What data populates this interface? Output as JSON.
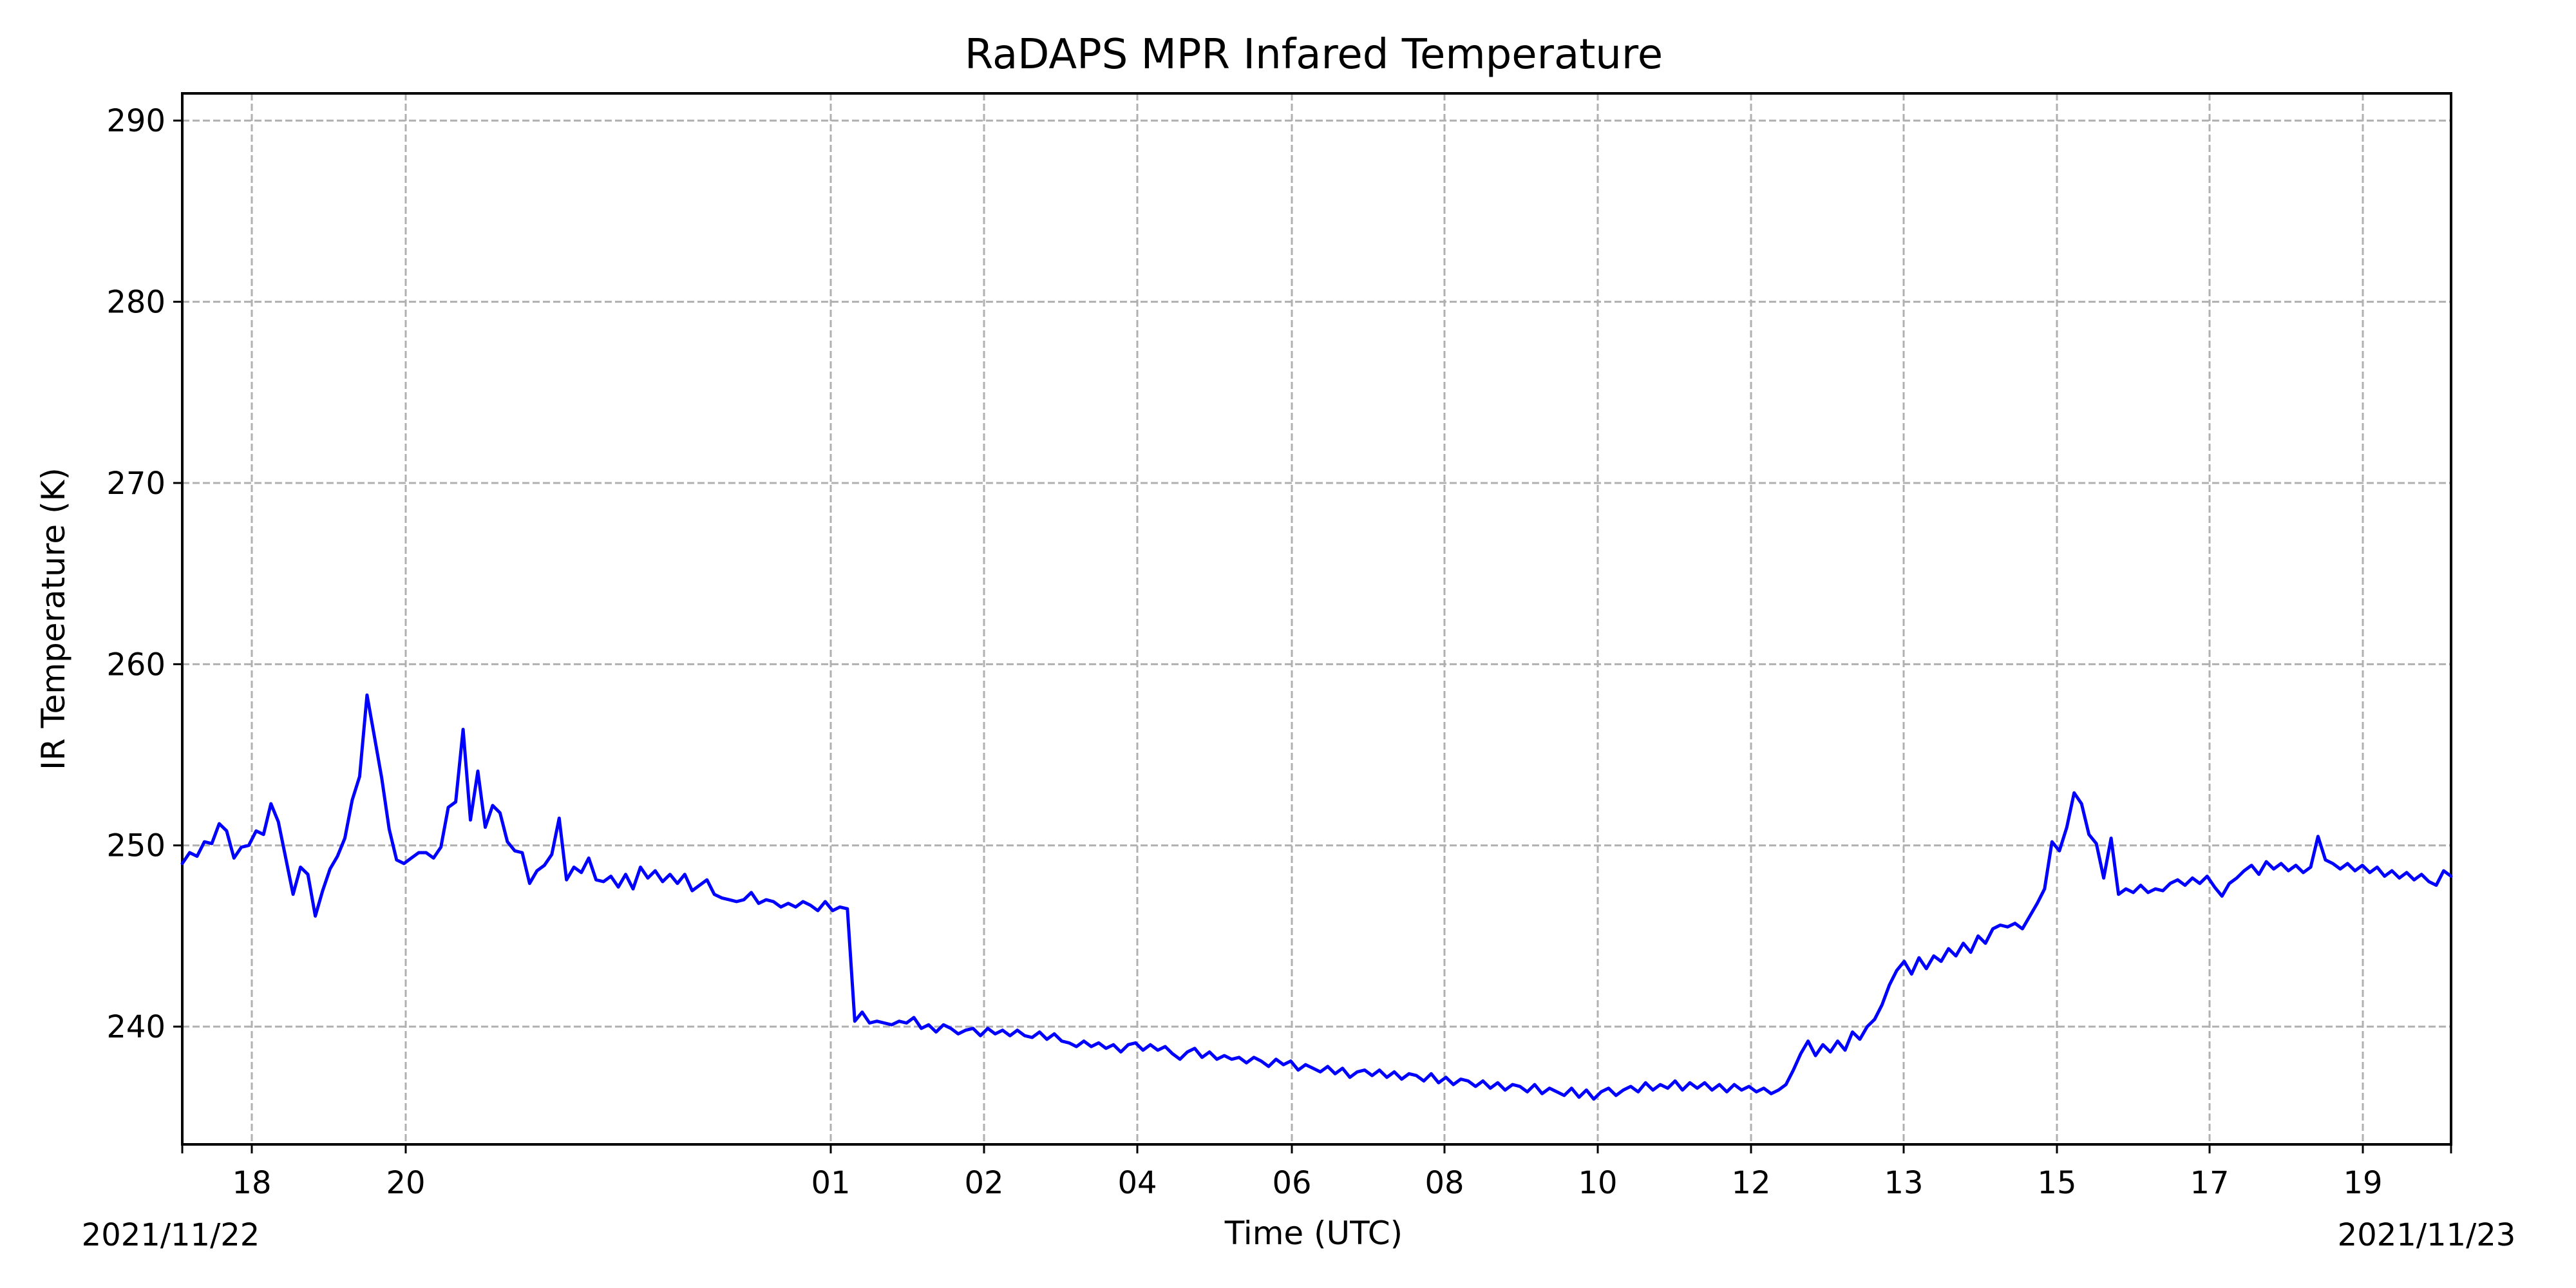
{
  "chart_data": {
    "type": "line",
    "title": "RaDAPS MPR Infared Temperature",
    "xlabel": "Time (UTC)",
    "ylabel": "IR Temperature (K)",
    "x_unit": "hour of day (UTC)",
    "ylim": [
      233.5,
      291.5
    ],
    "y_ticks": [
      240,
      250,
      260,
      270,
      280,
      290
    ],
    "x_tick_labels": [
      "18",
      "20",
      "01",
      "02",
      "04",
      "06",
      "08",
      "10",
      "12",
      "13",
      "15",
      "17",
      "19"
    ],
    "x_corner_labels": {
      "left": "2021/11/22",
      "right": "2021/11/23"
    },
    "grid": true,
    "series": [
      {
        "color": "#0000ff",
        "line_style": "solid",
        "points": [
          [
            0,
            249
          ],
          [
            1,
            249.6
          ],
          [
            2,
            249.4
          ],
          [
            3,
            250.2
          ],
          [
            4,
            250.1
          ],
          [
            5,
            251.2
          ],
          [
            6,
            250.8
          ],
          [
            7,
            249.3
          ],
          [
            8,
            249.9
          ],
          [
            9,
            250.0
          ],
          [
            10,
            250.8
          ],
          [
            11,
            250.6
          ],
          [
            12,
            252.3
          ],
          [
            13,
            251.3
          ],
          [
            14,
            249.3
          ],
          [
            15,
            247.3
          ],
          [
            16,
            248.8
          ],
          [
            17,
            248.4
          ],
          [
            18,
            246.1
          ],
          [
            19,
            247.5
          ],
          [
            20,
            248.7
          ],
          [
            21,
            249.4
          ],
          [
            22,
            250.4
          ],
          [
            23,
            252.5
          ],
          [
            24,
            253.8
          ],
          [
            25,
            258.3
          ],
          [
            26,
            256.0
          ],
          [
            27,
            253.7
          ],
          [
            28,
            250.9
          ],
          [
            29,
            249.2
          ],
          [
            30,
            249.0
          ],
          [
            31,
            249.3
          ],
          [
            32,
            249.6
          ],
          [
            33,
            249.6
          ],
          [
            34,
            249.3
          ],
          [
            35,
            249.9
          ],
          [
            36,
            252.1
          ],
          [
            37,
            252.4
          ],
          [
            38,
            256.4
          ],
          [
            39,
            251.4
          ],
          [
            40,
            254.1
          ],
          [
            41,
            251.0
          ],
          [
            42,
            252.2
          ],
          [
            43,
            251.8
          ],
          [
            44,
            250.2
          ],
          [
            45,
            249.7
          ],
          [
            46,
            249.6
          ],
          [
            47,
            247.9
          ],
          [
            48,
            248.6
          ],
          [
            49,
            248.9
          ],
          [
            50,
            249.5
          ],
          [
            51,
            251.5
          ],
          [
            52,
            248.1
          ],
          [
            53,
            248.8
          ],
          [
            54,
            248.5
          ],
          [
            55,
            249.3
          ],
          [
            56,
            248.1
          ],
          [
            57,
            248.0
          ],
          [
            58,
            248.3
          ],
          [
            59,
            247.7
          ],
          [
            60,
            248.4
          ],
          [
            61,
            247.6
          ],
          [
            62,
            248.8
          ],
          [
            63,
            248.2
          ],
          [
            64,
            248.6
          ],
          [
            65,
            248.0
          ],
          [
            66,
            248.4
          ],
          [
            67,
            247.9
          ],
          [
            68,
            248.4
          ],
          [
            69,
            247.5
          ],
          [
            70,
            247.8
          ],
          [
            71,
            248.1
          ],
          [
            72,
            247.3
          ],
          [
            73,
            247.1
          ],
          [
            74,
            247.0
          ],
          [
            75,
            246.9
          ],
          [
            76,
            247.0
          ],
          [
            77,
            247.4
          ],
          [
            78,
            246.8
          ],
          [
            79,
            247.0
          ],
          [
            80,
            246.9
          ],
          [
            81,
            246.6
          ],
          [
            82,
            246.8
          ],
          [
            83,
            246.6
          ],
          [
            84,
            246.9
          ],
          [
            85,
            246.7
          ],
          [
            86,
            246.4
          ],
          [
            87,
            246.9
          ],
          [
            88,
            246.4
          ],
          [
            89,
            246.6
          ],
          [
            90,
            246.5
          ],
          [
            91,
            240.3
          ],
          [
            92,
            240.8
          ],
          [
            93,
            240.2
          ],
          [
            94,
            240.3
          ],
          [
            95,
            240.2
          ],
          [
            96,
            240.1
          ],
          [
            97,
            240.3
          ],
          [
            98,
            240.2
          ],
          [
            99,
            240.5
          ],
          [
            100,
            239.9
          ],
          [
            101,
            240.1
          ],
          [
            102,
            239.7
          ],
          [
            103,
            240.1
          ],
          [
            104,
            239.9
          ],
          [
            105,
            239.6
          ],
          [
            106,
            239.8
          ],
          [
            107,
            239.9
          ],
          [
            108,
            239.5
          ],
          [
            109,
            239.9
          ],
          [
            110,
            239.6
          ],
          [
            111,
            239.8
          ],
          [
            112,
            239.5
          ],
          [
            113,
            239.8
          ],
          [
            114,
            239.5
          ],
          [
            115,
            239.4
          ],
          [
            116,
            239.7
          ],
          [
            117,
            239.3
          ],
          [
            118,
            239.6
          ],
          [
            119,
            239.2
          ],
          [
            120,
            239.1
          ],
          [
            121,
            238.9
          ],
          [
            122,
            239.2
          ],
          [
            123,
            238.9
          ],
          [
            124,
            239.1
          ],
          [
            125,
            238.8
          ],
          [
            126,
            239.0
          ],
          [
            127,
            238.6
          ],
          [
            128,
            239.0
          ],
          [
            129,
            239.1
          ],
          [
            130,
            238.7
          ],
          [
            131,
            239.0
          ],
          [
            132,
            238.7
          ],
          [
            133,
            238.9
          ],
          [
            134,
            238.5
          ],
          [
            135,
            238.2
          ],
          [
            136,
            238.6
          ],
          [
            137,
            238.8
          ],
          [
            138,
            238.3
          ],
          [
            139,
            238.6
          ],
          [
            140,
            238.2
          ],
          [
            141,
            238.4
          ],
          [
            142,
            238.2
          ],
          [
            143,
            238.3
          ],
          [
            144,
            238.0
          ],
          [
            145,
            238.3
          ],
          [
            146,
            238.1
          ],
          [
            147,
            237.8
          ],
          [
            148,
            238.2
          ],
          [
            149,
            237.9
          ],
          [
            150,
            238.1
          ],
          [
            151,
            237.6
          ],
          [
            152,
            237.9
          ],
          [
            153,
            237.7
          ],
          [
            154,
            237.5
          ],
          [
            155,
            237.8
          ],
          [
            156,
            237.4
          ],
          [
            157,
            237.7
          ],
          [
            158,
            237.2
          ],
          [
            159,
            237.5
          ],
          [
            160,
            237.6
          ],
          [
            161,
            237.3
          ],
          [
            162,
            237.6
          ],
          [
            163,
            237.2
          ],
          [
            164,
            237.5
          ],
          [
            165,
            237.1
          ],
          [
            166,
            237.4
          ],
          [
            167,
            237.3
          ],
          [
            168,
            237.0
          ],
          [
            169,
            237.4
          ],
          [
            170,
            236.9
          ],
          [
            171,
            237.2
          ],
          [
            172,
            236.8
          ],
          [
            173,
            237.1
          ],
          [
            174,
            237.0
          ],
          [
            175,
            236.7
          ],
          [
            176,
            237.0
          ],
          [
            177,
            236.6
          ],
          [
            178,
            236.9
          ],
          [
            179,
            236.5
          ],
          [
            180,
            236.8
          ],
          [
            181,
            236.7
          ],
          [
            182,
            236.4
          ],
          [
            183,
            236.8
          ],
          [
            184,
            236.3
          ],
          [
            185,
            236.6
          ],
          [
            186,
            236.4
          ],
          [
            187,
            236.2
          ],
          [
            188,
            236.6
          ],
          [
            189,
            236.1
          ],
          [
            190,
            236.5
          ],
          [
            191,
            236.0
          ],
          [
            192,
            236.4
          ],
          [
            193,
            236.6
          ],
          [
            194,
            236.2
          ],
          [
            195,
            236.5
          ],
          [
            196,
            236.7
          ],
          [
            197,
            236.4
          ],
          [
            198,
            236.9
          ],
          [
            199,
            236.5
          ],
          [
            200,
            236.8
          ],
          [
            201,
            236.6
          ],
          [
            202,
            237.0
          ],
          [
            203,
            236.5
          ],
          [
            204,
            236.9
          ],
          [
            205,
            236.6
          ],
          [
            206,
            236.9
          ],
          [
            207,
            236.5
          ],
          [
            208,
            236.8
          ],
          [
            209,
            236.4
          ],
          [
            210,
            236.8
          ],
          [
            211,
            236.5
          ],
          [
            212,
            236.7
          ],
          [
            213,
            236.4
          ],
          [
            214,
            236.6
          ],
          [
            215,
            236.3
          ],
          [
            216,
            236.5
          ],
          [
            217,
            236.8
          ],
          [
            218,
            237.6
          ],
          [
            219,
            238.5
          ],
          [
            220,
            239.2
          ],
          [
            221,
            238.4
          ],
          [
            222,
            239.0
          ],
          [
            223,
            238.6
          ],
          [
            224,
            239.2
          ],
          [
            225,
            238.7
          ],
          [
            226,
            239.7
          ],
          [
            227,
            239.3
          ],
          [
            228,
            240.0
          ],
          [
            229,
            240.4
          ],
          [
            230,
            241.2
          ],
          [
            231,
            242.3
          ],
          [
            232,
            243.1
          ],
          [
            233,
            243.6
          ],
          [
            234,
            242.9
          ],
          [
            235,
            243.8
          ],
          [
            236,
            243.2
          ],
          [
            237,
            243.9
          ],
          [
            238,
            243.6
          ],
          [
            239,
            244.3
          ],
          [
            240,
            243.9
          ],
          [
            241,
            244.6
          ],
          [
            242,
            244.1
          ],
          [
            243,
            245.0
          ],
          [
            244,
            244.6
          ],
          [
            245,
            245.4
          ],
          [
            246,
            245.6
          ],
          [
            247,
            245.5
          ],
          [
            248,
            245.7
          ],
          [
            249,
            245.4
          ],
          [
            250,
            246.1
          ],
          [
            251,
            246.8
          ],
          [
            252,
            247.6
          ],
          [
            253,
            250.2
          ],
          [
            254,
            249.7
          ],
          [
            255,
            251.0
          ],
          [
            256,
            252.9
          ],
          [
            257,
            252.3
          ],
          [
            258,
            250.6
          ],
          [
            259,
            250.1
          ],
          [
            260,
            248.2
          ],
          [
            261,
            250.4
          ],
          [
            262,
            247.3
          ],
          [
            263,
            247.6
          ],
          [
            264,
            247.4
          ],
          [
            265,
            247.8
          ],
          [
            266,
            247.4
          ],
          [
            267,
            247.6
          ],
          [
            268,
            247.5
          ],
          [
            269,
            247.9
          ],
          [
            270,
            248.1
          ],
          [
            271,
            247.8
          ],
          [
            272,
            248.2
          ],
          [
            273,
            247.9
          ],
          [
            274,
            248.3
          ],
          [
            275,
            247.7
          ],
          [
            276,
            247.2
          ],
          [
            277,
            247.9
          ],
          [
            278,
            248.2
          ],
          [
            279,
            248.6
          ],
          [
            280,
            248.9
          ],
          [
            281,
            248.4
          ],
          [
            282,
            249.1
          ],
          [
            283,
            248.7
          ],
          [
            284,
            249.0
          ],
          [
            285,
            248.6
          ],
          [
            286,
            248.9
          ],
          [
            287,
            248.5
          ],
          [
            288,
            248.8
          ],
          [
            289,
            250.5
          ],
          [
            290,
            249.2
          ],
          [
            291,
            249.0
          ],
          [
            292,
            248.7
          ],
          [
            293,
            249.0
          ],
          [
            294,
            248.6
          ],
          [
            295,
            248.9
          ],
          [
            296,
            248.5
          ],
          [
            297,
            248.8
          ],
          [
            298,
            248.3
          ],
          [
            299,
            248.6
          ],
          [
            300,
            248.2
          ],
          [
            301,
            248.5
          ],
          [
            302,
            248.1
          ],
          [
            303,
            248.4
          ],
          [
            304,
            248.0
          ],
          [
            305,
            247.8
          ],
          [
            306,
            248.6
          ],
          [
            307,
            248.3
          ]
        ]
      }
    ]
  }
}
